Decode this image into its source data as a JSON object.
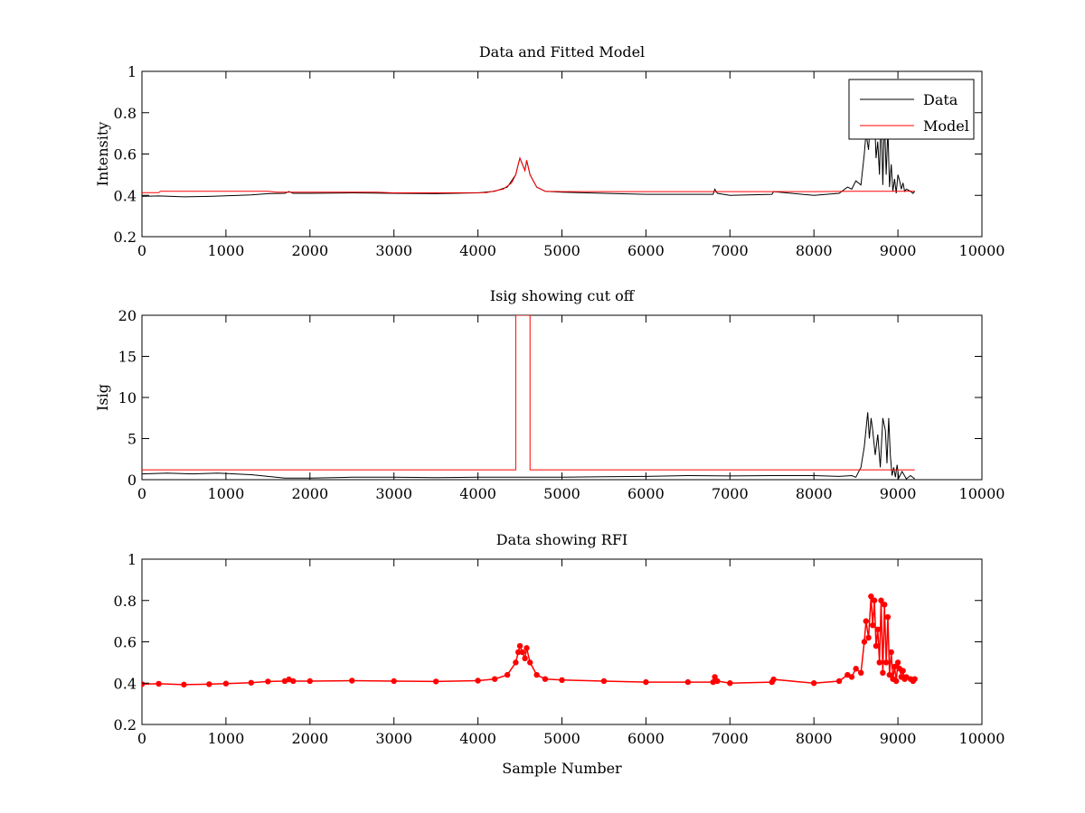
{
  "chart_data": [
    {
      "type": "line",
      "title": "Data and Fitted Model",
      "xlabel": "",
      "ylabel": "Intensity",
      "xlim": [
        0,
        10000
      ],
      "ylim": [
        0.2,
        1
      ],
      "xticks": [
        0,
        1000,
        2000,
        3000,
        4000,
        5000,
        6000,
        7000,
        8000,
        9000,
        10000
      ],
      "yticks": [
        0.2,
        0.4,
        0.6,
        0.8,
        1
      ],
      "xtick_labels": [
        "0",
        "1000",
        "2000",
        "3000",
        "4000",
        "5000",
        "6000",
        "7000",
        "8000",
        "9000",
        "10000"
      ],
      "ytick_labels": [
        "0.2",
        "0.4",
        "0.6",
        "0.8",
        "1"
      ],
      "grid": false,
      "legend": {
        "placement": "top-right",
        "entries": [
          "Data",
          "Model"
        ]
      },
      "series": [
        {
          "name": "Data",
          "color": "#000000",
          "x": [
            0,
            200,
            500,
            800,
            1000,
            1300,
            1500,
            1700,
            1750,
            1800,
            2000,
            2500,
            3000,
            3500,
            4000,
            4200,
            4350,
            4450,
            4480,
            4500,
            4530,
            4560,
            4580,
            4620,
            4700,
            4800,
            5000,
            5500,
            6000,
            6500,
            6800,
            6820,
            6850,
            7000,
            7500,
            7520,
            8000,
            8300,
            8400,
            8450,
            8500,
            8560,
            8600,
            8620,
            8650,
            8680,
            8700,
            8720,
            8740,
            8760,
            8780,
            8800,
            8820,
            8840,
            8860,
            8880,
            8900,
            8920,
            8940,
            8960,
            8980,
            9000,
            9020,
            9040,
            9060,
            9080,
            9100,
            9150,
            9180,
            9200
          ],
          "y": [
            0.395,
            0.397,
            0.393,
            0.395,
            0.398,
            0.402,
            0.408,
            0.41,
            0.418,
            0.41,
            0.41,
            0.412,
            0.41,
            0.408,
            0.412,
            0.42,
            0.44,
            0.5,
            0.55,
            0.58,
            0.55,
            0.52,
            0.57,
            0.5,
            0.44,
            0.42,
            0.415,
            0.41,
            0.405,
            0.405,
            0.405,
            0.43,
            0.41,
            0.4,
            0.405,
            0.418,
            0.4,
            0.41,
            0.44,
            0.43,
            0.47,
            0.45,
            0.6,
            0.7,
            0.62,
            0.82,
            0.68,
            0.8,
            0.58,
            0.66,
            0.5,
            0.8,
            0.45,
            0.78,
            0.5,
            0.72,
            0.44,
            0.55,
            0.42,
            0.48,
            0.41,
            0.5,
            0.47,
            0.43,
            0.46,
            0.42,
            0.43,
            0.42,
            0.41,
            0.42
          ]
        },
        {
          "name": "Model",
          "color": "#ff0000",
          "x": [
            0,
            200,
            220,
            1500,
            1600,
            2800,
            3000,
            4100,
            4300,
            4400,
            4450,
            4480,
            4500,
            4530,
            4560,
            4580,
            4620,
            4700,
            4800,
            5000,
            6000,
            7000,
            8000,
            8500,
            9200
          ],
          "y": [
            0.413,
            0.413,
            0.42,
            0.42,
            0.415,
            0.415,
            0.412,
            0.413,
            0.43,
            0.46,
            0.5,
            0.55,
            0.58,
            0.55,
            0.52,
            0.57,
            0.5,
            0.44,
            0.42,
            0.418,
            0.418,
            0.418,
            0.418,
            0.42,
            0.42
          ]
        }
      ]
    },
    {
      "type": "line",
      "title": "Isig showing cut off",
      "xlabel": "",
      "ylabel": "Isig",
      "xlim": [
        0,
        10000
      ],
      "ylim": [
        0,
        20
      ],
      "xticks": [
        0,
        1000,
        2000,
        3000,
        4000,
        5000,
        6000,
        7000,
        8000,
        9000,
        10000
      ],
      "yticks": [
        0,
        5,
        10,
        15,
        20
      ],
      "xtick_labels": [
        "0",
        "1000",
        "2000",
        "3000",
        "4000",
        "5000",
        "6000",
        "7000",
        "8000",
        "9000",
        "10000"
      ],
      "ytick_labels": [
        "0",
        "5",
        "10",
        "15",
        "20"
      ],
      "grid": false,
      "series": [
        {
          "color": "#000000",
          "x": [
            0,
            300,
            600,
            900,
            1100,
            1300,
            1500,
            1700,
            2000,
            2500,
            3000,
            3500,
            4000,
            4500,
            5000,
            5500,
            6000,
            6500,
            7000,
            7500,
            8000,
            8300,
            8450,
            8500,
            8560,
            8600,
            8640,
            8660,
            8680,
            8700,
            8730,
            8760,
            8790,
            8820,
            8850,
            8870,
            8890,
            8910,
            8930,
            8950,
            8970,
            8990,
            9010,
            9050,
            9100,
            9150,
            9200
          ],
          "y": [
            0.7,
            0.8,
            0.7,
            0.8,
            0.7,
            0.6,
            0.4,
            0.2,
            0.2,
            0.3,
            0.3,
            0.25,
            0.3,
            0.3,
            0.3,
            0.35,
            0.4,
            0.5,
            0.45,
            0.5,
            0.5,
            0.4,
            0.5,
            0.3,
            1.5,
            4,
            8.2,
            5,
            7.5,
            6,
            3,
            5.5,
            1.5,
            7.5,
            6,
            2,
            7.5,
            3,
            0.5,
            1.5,
            0.3,
            1.8,
            0.2,
            1,
            0.1,
            0.5,
            0.1
          ]
        },
        {
          "color": "#ff0000",
          "x": [
            0,
            4450,
            4450,
            4620,
            4620,
            9200
          ],
          "y": [
            1.2,
            1.2,
            20,
            20,
            1.2,
            1.2
          ]
        }
      ]
    },
    {
      "type": "scatter",
      "title": "Data showing RFI",
      "xlabel": "Sample Number",
      "ylabel": "",
      "xlim": [
        0,
        10000
      ],
      "ylim": [
        0.2,
        1
      ],
      "xticks": [
        0,
        1000,
        2000,
        3000,
        4000,
        5000,
        6000,
        7000,
        8000,
        9000,
        10000
      ],
      "yticks": [
        0.2,
        0.4,
        0.6,
        0.8,
        1
      ],
      "xtick_labels": [
        "0",
        "1000",
        "2000",
        "3000",
        "4000",
        "5000",
        "6000",
        "7000",
        "8000",
        "9000",
        "10000"
      ],
      "ytick_labels": [
        "0.2",
        "0.4",
        "0.6",
        "0.8",
        "1"
      ],
      "grid": false,
      "series": [
        {
          "color": "#ff0000",
          "x": [
            0,
            200,
            500,
            800,
            1000,
            1300,
            1500,
            1700,
            1750,
            1800,
            2000,
            2500,
            3000,
            3500,
            4000,
            4200,
            4350,
            4450,
            4480,
            4500,
            4530,
            4560,
            4580,
            4620,
            4700,
            4800,
            5000,
            5500,
            6000,
            6500,
            6800,
            6820,
            6850,
            7000,
            7500,
            7520,
            8000,
            8300,
            8400,
            8450,
            8500,
            8560,
            8600,
            8620,
            8650,
            8680,
            8700,
            8720,
            8740,
            8760,
            8780,
            8800,
            8820,
            8840,
            8860,
            8880,
            8900,
            8920,
            8940,
            8960,
            8980,
            9000,
            9020,
            9040,
            9060,
            9080,
            9100,
            9150,
            9180,
            9200
          ],
          "y": [
            0.395,
            0.397,
            0.393,
            0.395,
            0.398,
            0.402,
            0.408,
            0.41,
            0.418,
            0.41,
            0.41,
            0.412,
            0.41,
            0.408,
            0.412,
            0.42,
            0.44,
            0.5,
            0.55,
            0.58,
            0.55,
            0.52,
            0.57,
            0.5,
            0.44,
            0.42,
            0.415,
            0.41,
            0.405,
            0.405,
            0.405,
            0.43,
            0.41,
            0.4,
            0.405,
            0.418,
            0.4,
            0.41,
            0.44,
            0.43,
            0.47,
            0.45,
            0.6,
            0.7,
            0.62,
            0.82,
            0.68,
            0.8,
            0.58,
            0.66,
            0.5,
            0.8,
            0.45,
            0.78,
            0.5,
            0.72,
            0.44,
            0.55,
            0.42,
            0.48,
            0.41,
            0.5,
            0.47,
            0.43,
            0.46,
            0.42,
            0.43,
            0.42,
            0.41,
            0.42
          ]
        }
      ]
    }
  ]
}
